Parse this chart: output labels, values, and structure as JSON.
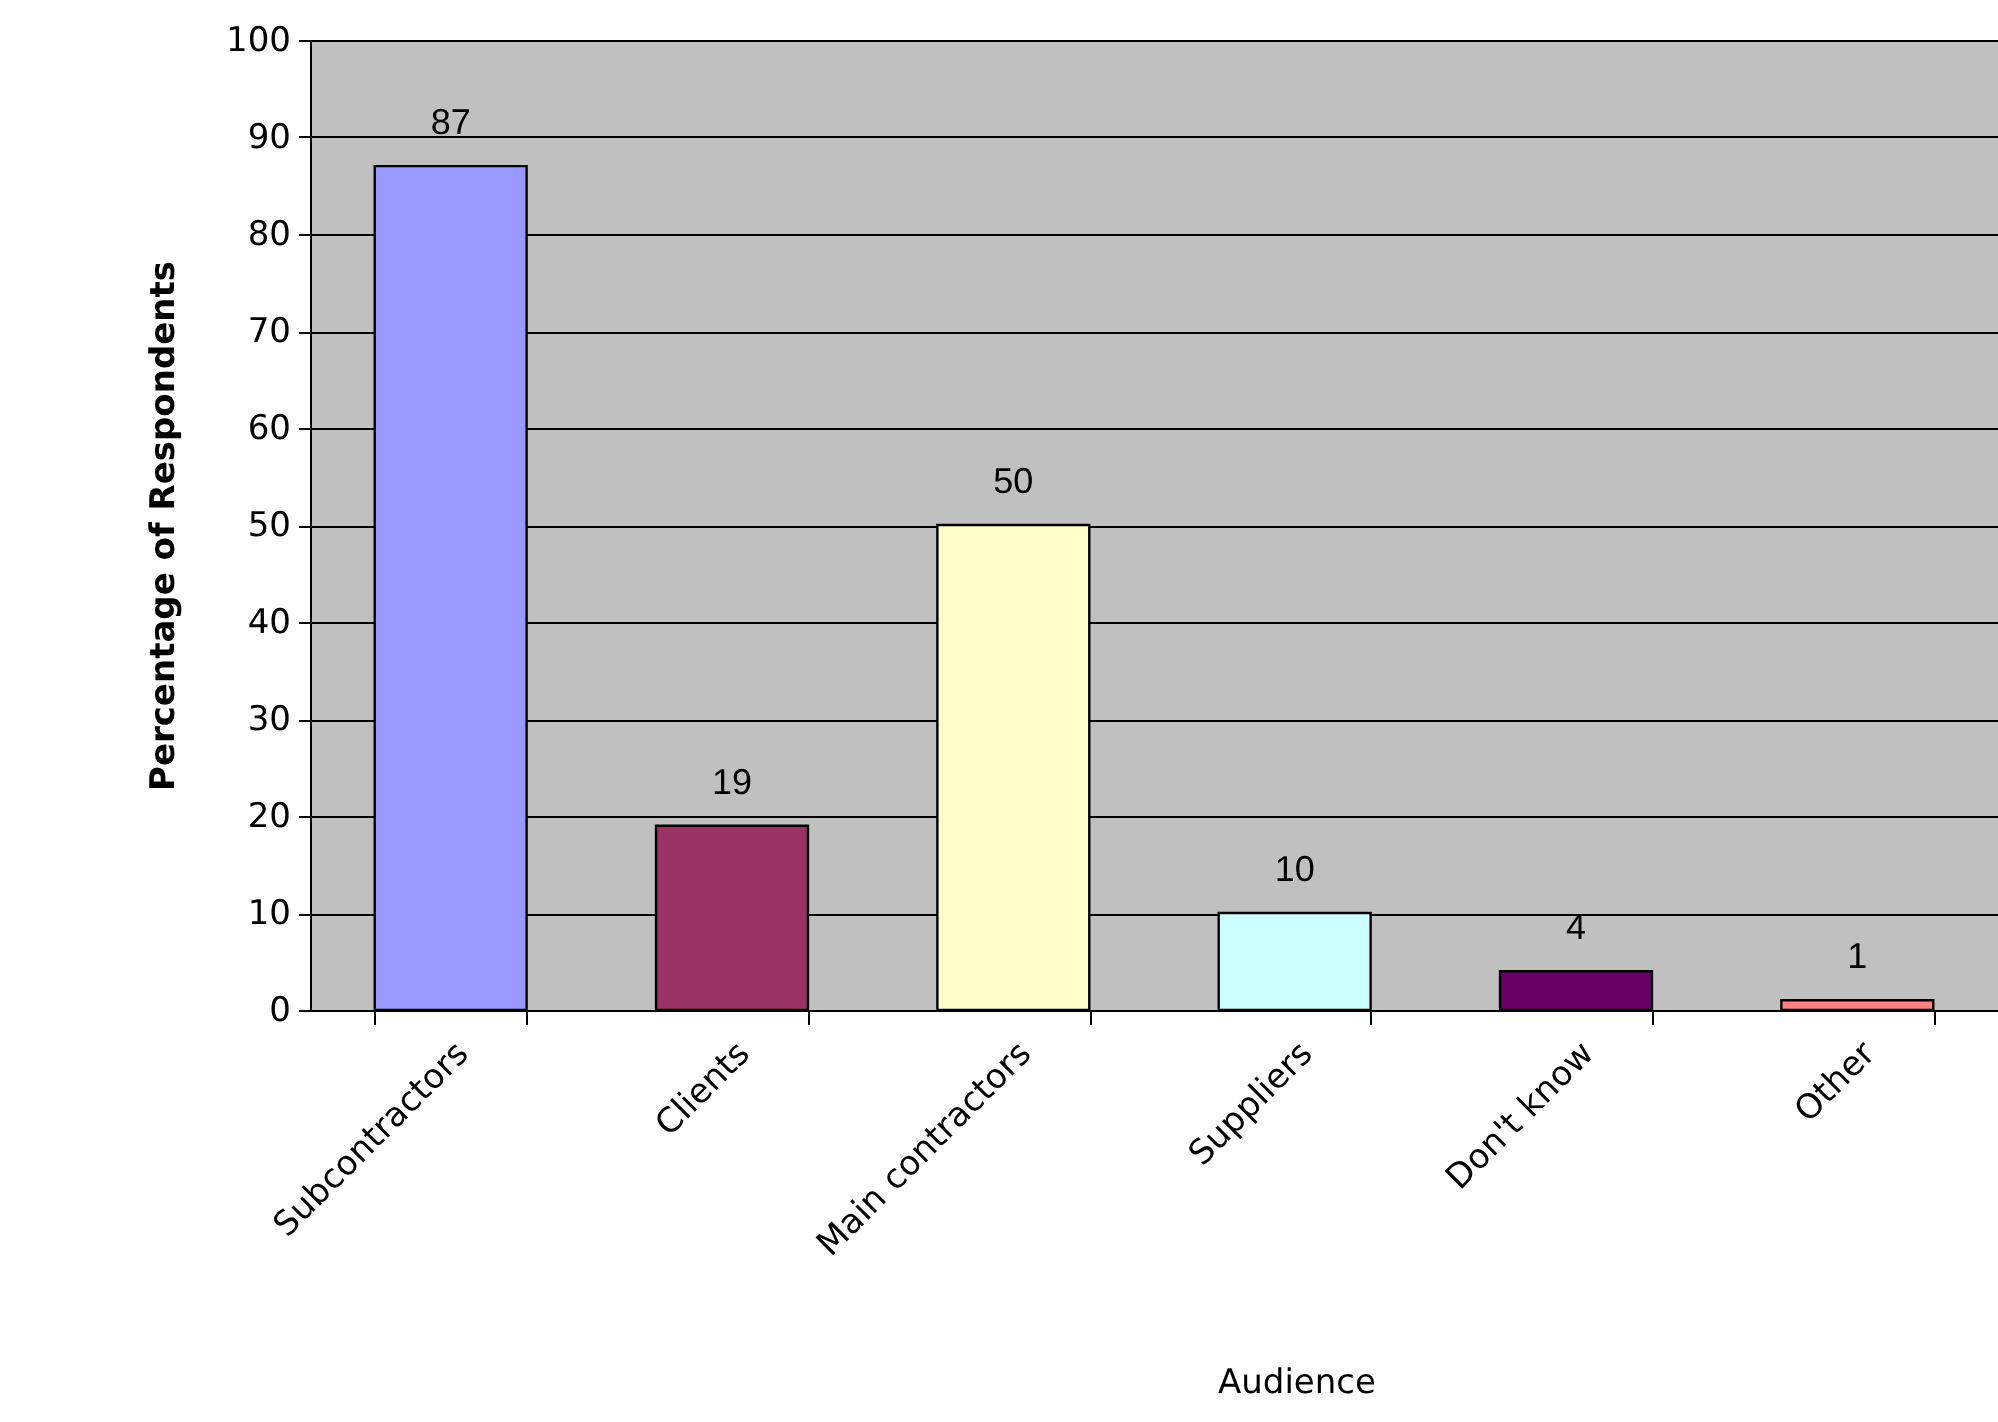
{
  "chart_data": {
    "type": "bar",
    "categories": [
      "Subcontractors",
      "Clients",
      "Main contractors",
      "Suppliers",
      "Don't know",
      "Other"
    ],
    "values": [
      87,
      19,
      50,
      10,
      4,
      1
    ],
    "colors": [
      "#9999ff",
      "#993366",
      "#ffffcc",
      "#ccffff",
      "#660066",
      "#ff8080"
    ],
    "xlabel": "Audience",
    "ylabel": "Percentage of Respondents",
    "ylim": [
      0,
      100
    ],
    "yticks": [
      0,
      10,
      20,
      30,
      40,
      50,
      60,
      70,
      80,
      90,
      100
    ],
    "grid": "y",
    "data_labels": true
  }
}
